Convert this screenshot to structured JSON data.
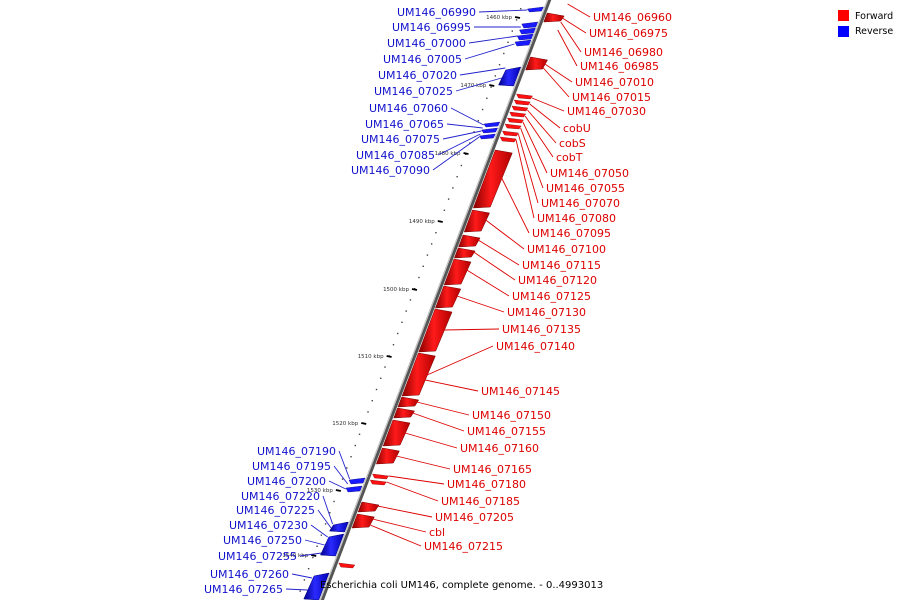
{
  "caption": "Escherichia coli UM146, complete genome. - 0..4993013",
  "legend": [
    {
      "label": "Forward",
      "color": "#ff0000"
    },
    {
      "label": "Reverse",
      "color": "#0000ff"
    }
  ],
  "ticks": [
    "1460 kbp",
    "1470 kbp",
    "1480 kbp",
    "1490 kbp",
    "1500 kbp",
    "1510 kbp",
    "1520 kbp",
    "1530 kbp",
    "1540 kbp"
  ],
  "reverse_genes": [
    "UM146_06990",
    "UM146_06995",
    "UM146_07000",
    "UM146_07005",
    "UM146_07020",
    "UM146_07025",
    "UM146_07060",
    "UM146_07065",
    "UM146_07075",
    "UM146_07085",
    "UM146_07090",
    "UM146_07190",
    "UM146_07195",
    "UM146_07200",
    "UM146_07220",
    "UM146_07225",
    "UM146_07230",
    "UM146_07250",
    "UM146_07255",
    "UM146_07260",
    "UM146_07265"
  ],
  "forward_genes": [
    "UM146_06960",
    "UM146_06975",
    "UM146_06980",
    "UM146_06985",
    "UM146_07010",
    "UM146_07015",
    "UM146_07030",
    "cobU",
    "cobS",
    "cobT",
    "UM146_07050",
    "UM146_07055",
    "UM146_07070",
    "UM146_07080",
    "UM146_07095",
    "UM146_07100",
    "UM146_07115",
    "UM146_07120",
    "UM146_07125",
    "UM146_07130",
    "UM146_07135",
    "UM146_07140",
    "UM146_07145",
    "UM146_07150",
    "UM146_07155",
    "UM146_07160",
    "UM146_07165",
    "UM146_07180",
    "UM146_07185",
    "UM146_07205",
    "cbl",
    "UM146_07215"
  ]
}
